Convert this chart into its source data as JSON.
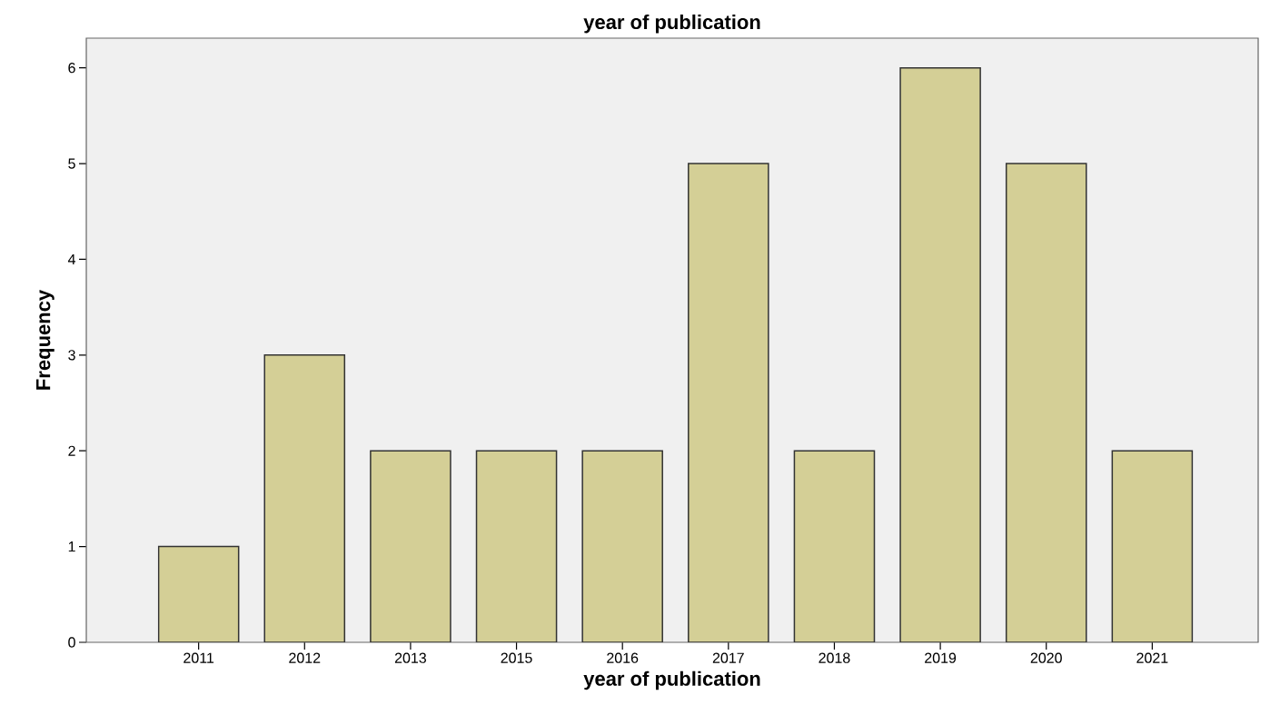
{
  "chart_data": {
    "type": "bar",
    "title": "year of publication",
    "xlabel": "year of publication",
    "ylabel": "Frequency",
    "categories": [
      "2011",
      "2012",
      "2013",
      "2015",
      "2016",
      "2017",
      "2018",
      "2019",
      "2020",
      "2021"
    ],
    "values": [
      1,
      3,
      2,
      2,
      2,
      5,
      2,
      6,
      5,
      2
    ],
    "color": "#d4cf96",
    "ylim": [
      0,
      6.31
    ],
    "yticks": [
      0,
      1,
      2,
      3,
      4,
      5,
      6
    ],
    "grid": false
  }
}
